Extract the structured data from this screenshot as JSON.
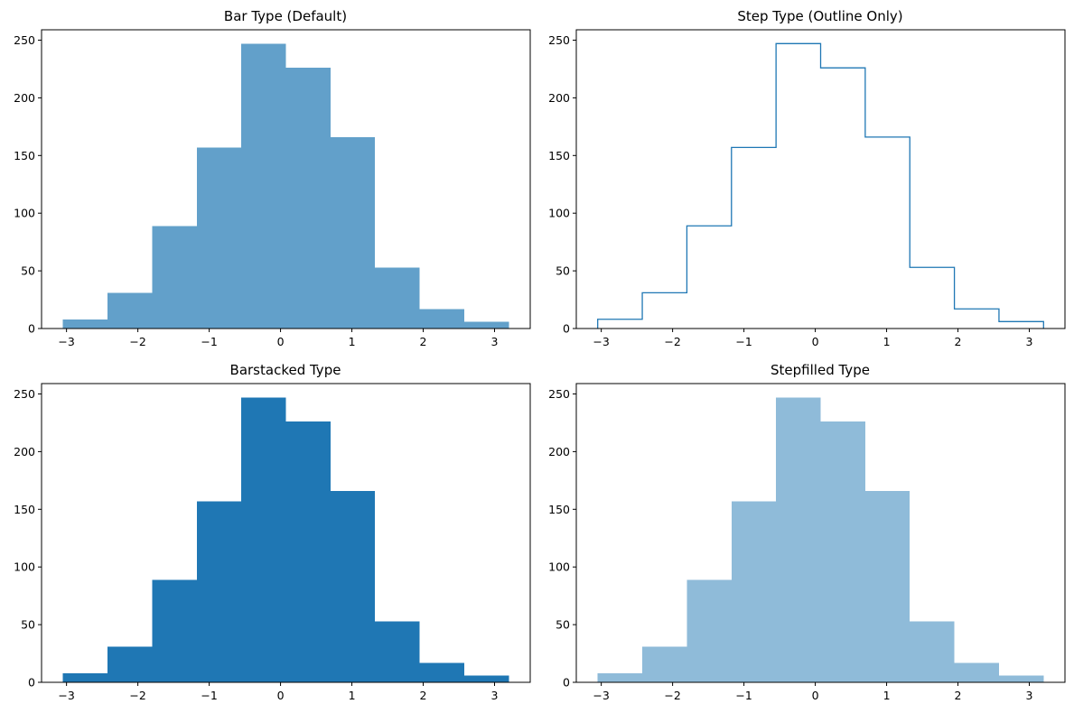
{
  "chart_data": [
    {
      "type": "histogram",
      "histtype": "bar",
      "title": "Bar Type (Default)",
      "bin_edges": [
        -3.05,
        -2.425,
        -1.8,
        -1.175,
        -0.55,
        0.075,
        0.7,
        1.325,
        1.95,
        2.575,
        3.2
      ],
      "counts": [
        8,
        31,
        89,
        157,
        247,
        226,
        166,
        53,
        17,
        6
      ],
      "color": "#1f77b4",
      "fill_opacity": 0.7,
      "xlim": [
        -3.35,
        3.5
      ],
      "ylim": [
        0,
        259
      ],
      "xticks": [
        -3,
        -2,
        -1,
        0,
        1,
        2,
        3
      ],
      "xtick_labels": [
        "−3",
        "−2",
        "−1",
        "0",
        "1",
        "2",
        "3"
      ],
      "yticks": [
        0,
        50,
        100,
        150,
        200,
        250
      ],
      "ytick_labels": [
        "0",
        "50",
        "100",
        "150",
        "200",
        "250"
      ],
      "xlabel": "",
      "ylabel": ""
    },
    {
      "type": "histogram",
      "histtype": "step",
      "title": "Step Type (Outline Only)",
      "bin_edges": [
        -3.05,
        -2.425,
        -1.8,
        -1.175,
        -0.55,
        0.075,
        0.7,
        1.325,
        1.95,
        2.575,
        3.2
      ],
      "counts": [
        8,
        31,
        89,
        157,
        247,
        226,
        166,
        53,
        17,
        6
      ],
      "color": "#1f77b4",
      "fill_opacity": 0,
      "xlim": [
        -3.35,
        3.5
      ],
      "ylim": [
        0,
        259
      ],
      "xticks": [
        -3,
        -2,
        -1,
        0,
        1,
        2,
        3
      ],
      "xtick_labels": [
        "−3",
        "−2",
        "−1",
        "0",
        "1",
        "2",
        "3"
      ],
      "yticks": [
        0,
        50,
        100,
        150,
        200,
        250
      ],
      "ytick_labels": [
        "0",
        "50",
        "100",
        "150",
        "200",
        "250"
      ],
      "xlabel": "",
      "ylabel": ""
    },
    {
      "type": "histogram",
      "histtype": "barstacked",
      "title": "Barstacked Type",
      "bin_edges": [
        -3.05,
        -2.425,
        -1.8,
        -1.175,
        -0.55,
        0.075,
        0.7,
        1.325,
        1.95,
        2.575,
        3.2
      ],
      "counts": [
        8,
        31,
        89,
        157,
        247,
        226,
        166,
        53,
        17,
        6
      ],
      "color": "#1f77b4",
      "fill_opacity": 1,
      "xlim": [
        -3.35,
        3.5
      ],
      "ylim": [
        0,
        259
      ],
      "xticks": [
        -3,
        -2,
        -1,
        0,
        1,
        2,
        3
      ],
      "xtick_labels": [
        "−3",
        "−2",
        "−1",
        "0",
        "1",
        "2",
        "3"
      ],
      "yticks": [
        0,
        50,
        100,
        150,
        200,
        250
      ],
      "ytick_labels": [
        "0",
        "50",
        "100",
        "150",
        "200",
        "250"
      ],
      "xlabel": "",
      "ylabel": ""
    },
    {
      "type": "histogram",
      "histtype": "stepfilled",
      "title": "Stepfilled Type",
      "bin_edges": [
        -3.05,
        -2.425,
        -1.8,
        -1.175,
        -0.55,
        0.075,
        0.7,
        1.325,
        1.95,
        2.575,
        3.2
      ],
      "counts": [
        8,
        31,
        89,
        157,
        247,
        226,
        166,
        53,
        17,
        6
      ],
      "color": "#1f77b4",
      "fill_opacity": 0.5,
      "xlim": [
        -3.35,
        3.5
      ],
      "ylim": [
        0,
        259
      ],
      "xticks": [
        -3,
        -2,
        -1,
        0,
        1,
        2,
        3
      ],
      "xtick_labels": [
        "−3",
        "−2",
        "−1",
        "0",
        "1",
        "2",
        "3"
      ],
      "yticks": [
        0,
        50,
        100,
        150,
        200,
        250
      ],
      "ytick_labels": [
        "0",
        "50",
        "100",
        "150",
        "200",
        "250"
      ],
      "xlabel": "",
      "ylabel": ""
    }
  ]
}
